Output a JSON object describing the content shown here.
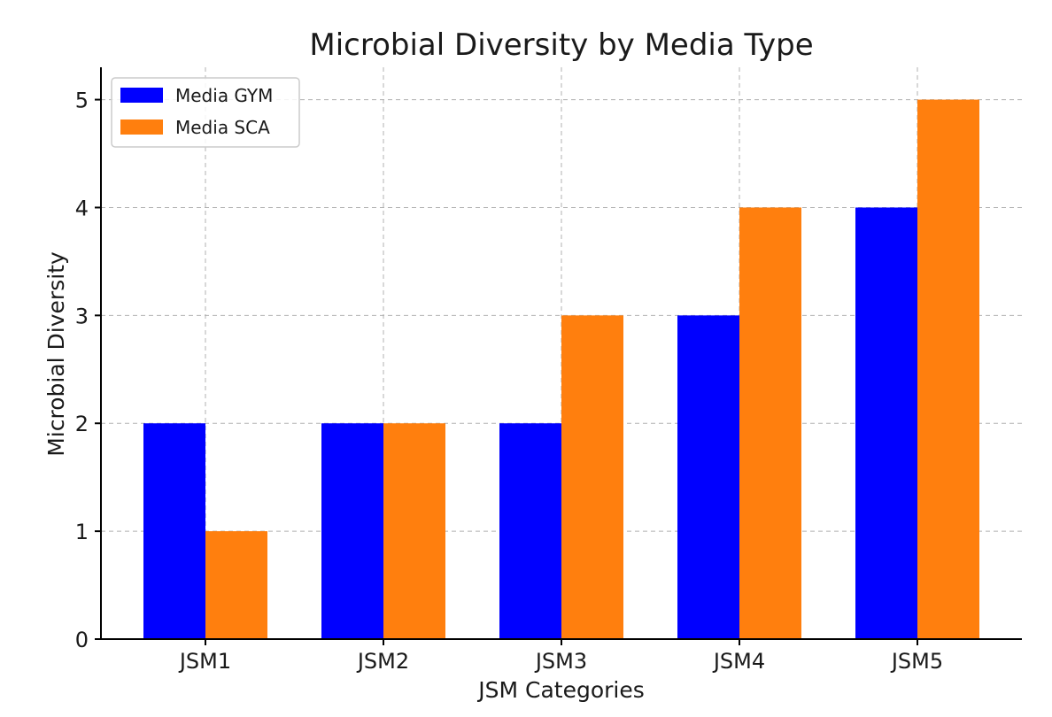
{
  "chart_data": {
    "type": "bar",
    "title": "Microbial Diversity by Media Type",
    "xlabel": "JSM Categories",
    "ylabel": "Microbial Diversity",
    "categories": [
      "JSM1",
      "JSM2",
      "JSM3",
      "JSM4",
      "JSM5"
    ],
    "series": [
      {
        "name": "Media GYM",
        "color": "#0000ff",
        "values": [
          2,
          2,
          2,
          3,
          4
        ]
      },
      {
        "name": "Media SCA",
        "color": "#ff7f0e",
        "values": [
          1,
          2,
          3,
          4,
          5
        ]
      }
    ],
    "ylim": [
      0,
      5.3
    ],
    "yticks": [
      0,
      1,
      2,
      3,
      4,
      5
    ],
    "grid": true,
    "legend_position": "top-left"
  }
}
